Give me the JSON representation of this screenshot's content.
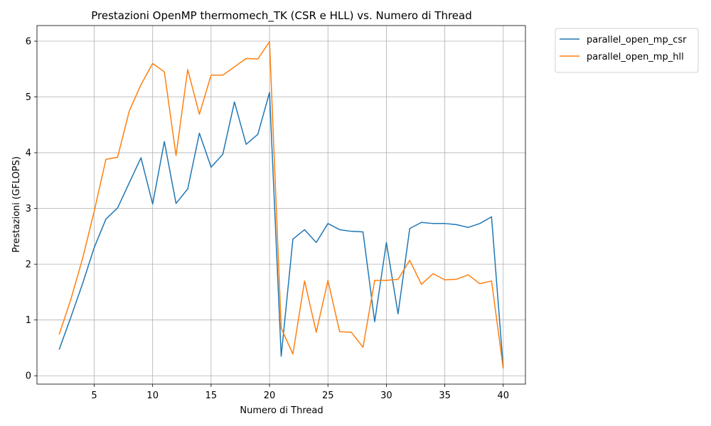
{
  "chart_data": {
    "type": "line",
    "title": "Prestazioni OpenMP thermomech_TK (CSR e HLL) vs. Numero di Thread",
    "xlabel": "Numero di Thread",
    "ylabel": "Prestazioni (GFLOPS)",
    "xlim": [
      0.1,
      41.9
    ],
    "ylim": [
      -0.15,
      6.28
    ],
    "xticks": [
      5,
      10,
      15,
      20,
      25,
      30,
      35,
      40
    ],
    "yticks": [
      0,
      1,
      2,
      3,
      4,
      5,
      6
    ],
    "grid": true,
    "legend": "outside-top-right",
    "x": [
      2,
      3,
      4,
      5,
      6,
      7,
      8,
      9,
      10,
      11,
      12,
      13,
      14,
      15,
      16,
      17,
      18,
      19,
      20,
      21,
      22,
      23,
      24,
      25,
      26,
      27,
      28,
      29,
      30,
      31,
      32,
      33,
      34,
      35,
      36,
      37,
      38,
      39,
      40
    ],
    "series": [
      {
        "name": "parallel_open_mp_csr",
        "color": "#1f77b4",
        "values": [
          0.47,
          1.05,
          1.65,
          2.3,
          2.81,
          3.01,
          3.46,
          3.91,
          3.08,
          4.2,
          3.09,
          3.35,
          4.35,
          3.74,
          3.97,
          4.91,
          4.15,
          4.33,
          5.08,
          0.35,
          2.45,
          2.62,
          2.39,
          2.73,
          2.62,
          2.59,
          2.58,
          0.97,
          2.39,
          1.11,
          2.64,
          2.75,
          2.73,
          2.73,
          2.71,
          2.66,
          2.73,
          2.85,
          0.15
        ]
      },
      {
        "name": "parallel_open_mp_hll",
        "color": "#ff7f0e",
        "values": [
          0.74,
          1.37,
          2.1,
          2.95,
          3.88,
          3.92,
          4.75,
          5.22,
          5.6,
          5.45,
          3.95,
          5.49,
          4.69,
          5.39,
          5.39,
          5.54,
          5.69,
          5.68,
          5.99,
          0.85,
          0.39,
          1.7,
          0.78,
          1.71,
          0.79,
          0.78,
          0.51,
          1.71,
          1.71,
          1.73,
          2.07,
          1.64,
          1.83,
          1.72,
          1.73,
          1.81,
          1.65,
          1.7,
          0.13
        ]
      }
    ]
  }
}
